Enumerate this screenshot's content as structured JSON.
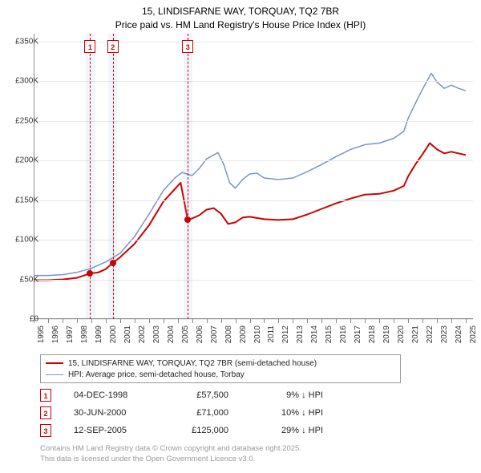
{
  "title": {
    "line1": "15, LINDISFARNE WAY, TORQUAY, TQ2 7BR",
    "line2": "Price paid vs. HM Land Registry's House Price Index (HPI)"
  },
  "chart": {
    "type": "line",
    "background_color": "#ffffff",
    "grid_color": "#e8e8e8",
    "axis_color": "#888888",
    "x": {
      "min": 1995,
      "max": 2025.5,
      "ticks": [
        1995,
        1996,
        1997,
        1998,
        1999,
        2000,
        2001,
        2002,
        2003,
        2004,
        2005,
        2006,
        2007,
        2008,
        2009,
        2010,
        2011,
        2012,
        2013,
        2014,
        2015,
        2016,
        2017,
        2018,
        2019,
        2020,
        2021,
        2022,
        2023,
        2024,
        2025
      ],
      "tick_labels": [
        "1995",
        "1996",
        "1997",
        "1998",
        "1999",
        "2000",
        "2001",
        "2002",
        "2003",
        "2004",
        "2005",
        "2006",
        "2007",
        "2008",
        "2009",
        "2010",
        "2011",
        "2012",
        "2013",
        "2014",
        "2015",
        "2016",
        "2017",
        "2018",
        "2019",
        "2020",
        "2021",
        "2022",
        "2023",
        "2024",
        "2025"
      ],
      "label_fontsize": 10
    },
    "y": {
      "min": 0,
      "max": 360000,
      "ticks": [
        0,
        50000,
        100000,
        150000,
        200000,
        250000,
        300000,
        350000
      ],
      "tick_labels": [
        "£0",
        "£50K",
        "£100K",
        "£150K",
        "£200K",
        "£250K",
        "£300K",
        "£350K"
      ],
      "label_fontsize": 10
    },
    "series": [
      {
        "id": "price_paid",
        "label": "15, LINDISFARNE WAY, TORQUAY, TQ2 7BR (semi-detached house)",
        "color": "#cc0000",
        "width": 2,
        "points": [
          [
            1995,
            49000
          ],
          [
            1996,
            49000
          ],
          [
            1997,
            50000
          ],
          [
            1998,
            52000
          ],
          [
            1998.92,
            57500
          ],
          [
            1999.5,
            59000
          ],
          [
            2000,
            63000
          ],
          [
            2000.5,
            71000
          ],
          [
            2001,
            78000
          ],
          [
            2002,
            95000
          ],
          [
            2003,
            118000
          ],
          [
            2004,
            148000
          ],
          [
            2004.8,
            164000
          ],
          [
            2005.2,
            172000
          ],
          [
            2005.7,
            125000
          ],
          [
            2006,
            127000
          ],
          [
            2006.5,
            131000
          ],
          [
            2007,
            138000
          ],
          [
            2007.5,
            140000
          ],
          [
            2008,
            133000
          ],
          [
            2008.5,
            120000
          ],
          [
            2009,
            122000
          ],
          [
            2009.5,
            128000
          ],
          [
            2010,
            129000
          ],
          [
            2011,
            126000
          ],
          [
            2012,
            125000
          ],
          [
            2013,
            126000
          ],
          [
            2014,
            132000
          ],
          [
            2015,
            139000
          ],
          [
            2016,
            146000
          ],
          [
            2017,
            152000
          ],
          [
            2018,
            157000
          ],
          [
            2019,
            158000
          ],
          [
            2020,
            162000
          ],
          [
            2020.7,
            168000
          ],
          [
            2021,
            180000
          ],
          [
            2021.5,
            195000
          ],
          [
            2022,
            208000
          ],
          [
            2022.5,
            222000
          ],
          [
            2023,
            214000
          ],
          [
            2023.5,
            209000
          ],
          [
            2024,
            211000
          ],
          [
            2024.5,
            209000
          ],
          [
            2025,
            207000
          ]
        ]
      },
      {
        "id": "hpi",
        "label": "HPI: Average price, semi-detached house, Torbay",
        "color": "#7896c7",
        "width": 1.5,
        "points": [
          [
            1995,
            55000
          ],
          [
            1996,
            55000
          ],
          [
            1997,
            56000
          ],
          [
            1998,
            59000
          ],
          [
            1999,
            64000
          ],
          [
            2000,
            72000
          ],
          [
            2001,
            83000
          ],
          [
            2002,
            104000
          ],
          [
            2003,
            132000
          ],
          [
            2004,
            162000
          ],
          [
            2004.8,
            178000
          ],
          [
            2005.3,
            185000
          ],
          [
            2006,
            181000
          ],
          [
            2006.5,
            190000
          ],
          [
            2007,
            202000
          ],
          [
            2007.5,
            207000
          ],
          [
            2007.8,
            210000
          ],
          [
            2008.2,
            195000
          ],
          [
            2008.6,
            172000
          ],
          [
            2009,
            165000
          ],
          [
            2009.5,
            176000
          ],
          [
            2010,
            183000
          ],
          [
            2010.5,
            184000
          ],
          [
            2011,
            178000
          ],
          [
            2012,
            176000
          ],
          [
            2013,
            178000
          ],
          [
            2014,
            186000
          ],
          [
            2015,
            195000
          ],
          [
            2016,
            205000
          ],
          [
            2017,
            214000
          ],
          [
            2018,
            220000
          ],
          [
            2019,
            222000
          ],
          [
            2020,
            228000
          ],
          [
            2020.7,
            237000
          ],
          [
            2021,
            253000
          ],
          [
            2021.5,
            272000
          ],
          [
            2022,
            290000
          ],
          [
            2022.6,
            310000
          ],
          [
            2023,
            299000
          ],
          [
            2023.5,
            291000
          ],
          [
            2024,
            295000
          ],
          [
            2024.5,
            291000
          ],
          [
            2025,
            288000
          ]
        ]
      }
    ],
    "marker_bands": [
      {
        "from": 1998.6,
        "to": 1999.3,
        "color": "rgba(135,172,219,0.12)"
      },
      {
        "from": 2000.2,
        "to": 2000.8,
        "color": "rgba(135,172,219,0.12)"
      },
      {
        "from": 2005.4,
        "to": 2006.0,
        "color": "rgba(135,172,219,0.12)"
      }
    ],
    "marker_lines": [
      {
        "id": 1,
        "x": 1998.92,
        "color": "#cc0000",
        "style": "dashed"
      },
      {
        "id": 2,
        "x": 2000.5,
        "color": "#cc0000",
        "style": "dashed"
      },
      {
        "id": 3,
        "x": 2005.7,
        "color": "#cc0000",
        "style": "dashed"
      }
    ],
    "sale_points": [
      {
        "x": 1998.92,
        "y": 57500,
        "color": "#cc0000"
      },
      {
        "x": 2000.5,
        "y": 71000,
        "color": "#cc0000"
      },
      {
        "x": 2005.7,
        "y": 125000,
        "color": "#cc0000"
      }
    ]
  },
  "legend": {
    "items": [
      {
        "color": "#cc0000",
        "width": 2,
        "label": "15, LINDISFARNE WAY, TORQUAY, TQ2 7BR (semi-detached house)"
      },
      {
        "color": "#7896c7",
        "width": 1.5,
        "label": "HPI: Average price, semi-detached house, Torbay"
      }
    ]
  },
  "markers_table": {
    "rows": [
      {
        "n": "1",
        "date": "04-DEC-1998",
        "price": "£57,500",
        "diff": "9% ↓ HPI"
      },
      {
        "n": "2",
        "date": "30-JUN-2000",
        "price": "£71,000",
        "diff": "10% ↓ HPI"
      },
      {
        "n": "3",
        "date": "12-SEP-2005",
        "price": "£125,000",
        "diff": "29% ↓ HPI"
      }
    ]
  },
  "license": {
    "line1": "Contains HM Land Registry data © Crown copyright and database right 2025.",
    "line2": "This data is licensed under the Open Government Licence v3.0."
  }
}
